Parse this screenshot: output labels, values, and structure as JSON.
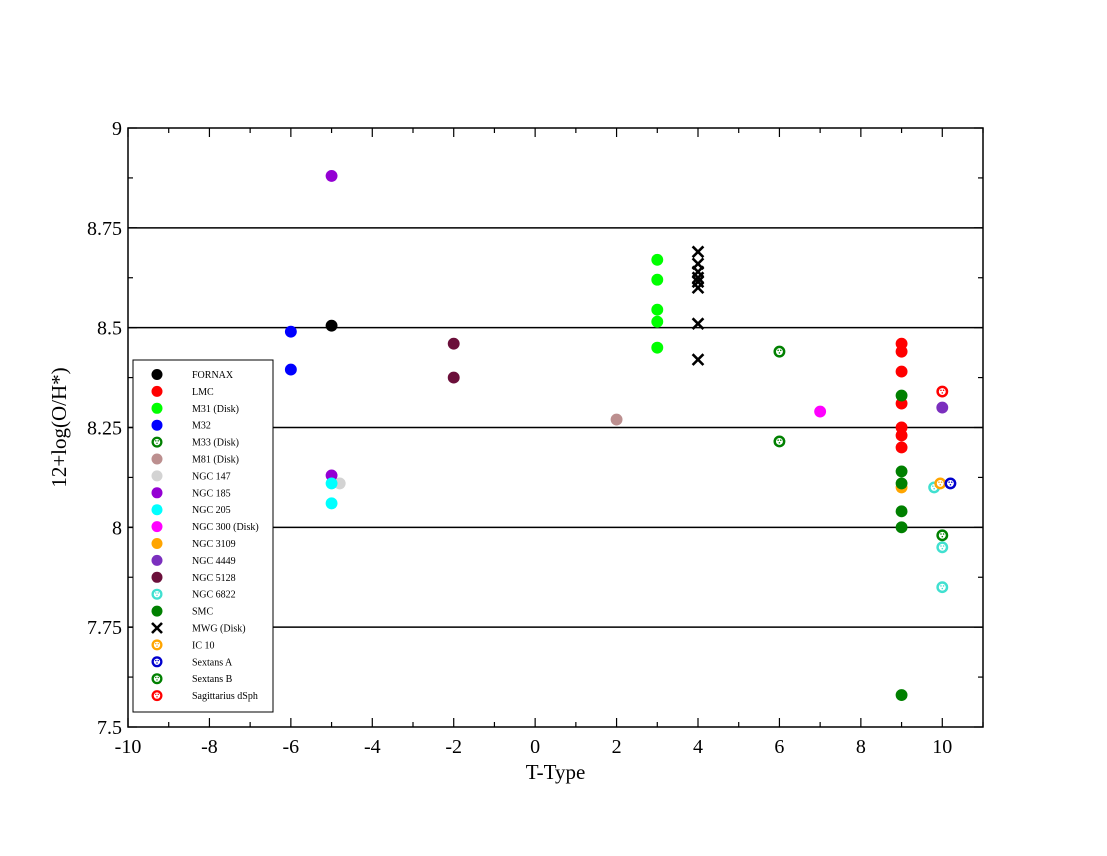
{
  "chart_data": {
    "type": "scatter",
    "title": "",
    "xlabel": "T-Type",
    "ylabel": "12+log(O/H*)",
    "xlim": [
      -10,
      11
    ],
    "ylim": [
      7.5,
      9
    ],
    "xticks": [
      -10,
      -8,
      -6,
      -4,
      -2,
      0,
      2,
      4,
      6,
      8,
      10
    ],
    "xtick_labels": [
      "-10",
      "-8",
      "-6",
      "-4",
      "-2",
      "0",
      "2",
      "4",
      "6",
      "8",
      "10"
    ],
    "yticks": [
      7.5,
      7.75,
      8,
      8.25,
      8.5,
      8.75,
      9
    ],
    "ytick_labels": [
      "7.5",
      "7.75",
      "8",
      "8.25",
      "8.5",
      "8.75",
      "9"
    ],
    "horizontal_gridlines": [
      7.75,
      8,
      8.25,
      8.5,
      8.75
    ],
    "legend_position": "left-middle",
    "series": [
      {
        "name": "FORNAX",
        "color": "#000000",
        "marker": "filled",
        "points": [
          [
            -5,
            8.505
          ]
        ]
      },
      {
        "name": "LMC",
        "color": "#ff0000",
        "marker": "filled",
        "points": [
          [
            9,
            8.46
          ],
          [
            9,
            8.44
          ],
          [
            9,
            8.39
          ],
          [
            9,
            8.31
          ],
          [
            9,
            8.25
          ],
          [
            9,
            8.23
          ],
          [
            9,
            8.2
          ]
        ]
      },
      {
        "name": "M31 (Disk)",
        "color": "#00ff00",
        "marker": "filled",
        "points": [
          [
            3,
            8.67
          ],
          [
            3,
            8.62
          ],
          [
            3,
            8.545
          ],
          [
            3,
            8.515
          ],
          [
            3,
            8.45
          ]
        ]
      },
      {
        "name": "M32",
        "color": "#0000ff",
        "marker": "filled",
        "points": [
          [
            -6,
            8.49
          ],
          [
            -6,
            8.395
          ]
        ]
      },
      {
        "name": "M33 (Disk)",
        "color": "#008000",
        "marker": "hollow",
        "points": [
          [
            6,
            8.44
          ],
          [
            6,
            8.215
          ]
        ]
      },
      {
        "name": "M81 (Disk)",
        "color": "#bc8f8f",
        "marker": "filled",
        "points": [
          [
            2,
            8.27
          ]
        ]
      },
      {
        "name": "NGC 147",
        "color": "#d3d3d3",
        "marker": "filled",
        "points": [
          [
            -4.8,
            8.11
          ]
        ]
      },
      {
        "name": "NGC 185",
        "color": "#9400d3",
        "marker": "filled",
        "points": [
          [
            -5,
            8.88
          ],
          [
            -5,
            8.13
          ]
        ]
      },
      {
        "name": "NGC 205",
        "color": "#00ffff",
        "marker": "filled",
        "points": [
          [
            -5,
            8.11
          ],
          [
            -5,
            8.06
          ]
        ]
      },
      {
        "name": "NGC 300 (Disk)",
        "color": "#ff00ff",
        "marker": "filled",
        "points": [
          [
            7,
            8.29
          ]
        ]
      },
      {
        "name": "NGC 3109",
        "color": "#ffa500",
        "marker": "filled",
        "points": [
          [
            9,
            8.1
          ]
        ]
      },
      {
        "name": "NGC 4449",
        "color": "#7b2fbe",
        "marker": "filled",
        "points": [
          [
            10,
            8.3
          ]
        ]
      },
      {
        "name": "NGC 5128",
        "color": "#6b0f3a",
        "marker": "filled",
        "points": [
          [
            -2,
            8.46
          ],
          [
            -2,
            8.375
          ]
        ]
      },
      {
        "name": "NGC 6822",
        "color": "#40e0d0",
        "marker": "hollow",
        "points": [
          [
            9.8,
            8.1
          ],
          [
            10,
            7.95
          ],
          [
            10,
            7.85
          ]
        ]
      },
      {
        "name": "SMC",
        "color": "#008000",
        "marker": "filled",
        "points": [
          [
            9,
            8.33
          ],
          [
            9,
            8.14
          ],
          [
            9,
            8.11
          ],
          [
            9,
            8.04
          ],
          [
            9,
            8.0
          ],
          [
            9,
            7.58
          ]
        ]
      },
      {
        "name": "MWG  (Disk)",
        "color": "#000000",
        "marker": "x",
        "points": [
          [
            4,
            8.69
          ],
          [
            4,
            8.66
          ],
          [
            4,
            8.64
          ],
          [
            4,
            8.625
          ],
          [
            4,
            8.615
          ],
          [
            4,
            8.6
          ],
          [
            4,
            8.51
          ],
          [
            4,
            8.42
          ]
        ]
      },
      {
        "name": "IC 10",
        "color": "#ffa500",
        "marker": "hollow",
        "points": [
          [
            9.95,
            8.11
          ]
        ]
      },
      {
        "name": "Sextans A",
        "color": "#0000cd",
        "marker": "hollow",
        "points": [
          [
            10.2,
            8.11
          ]
        ]
      },
      {
        "name": "Sextans B",
        "color": "#008000",
        "marker": "hollow",
        "points": [
          [
            10,
            7.98
          ]
        ]
      },
      {
        "name": "Sagittarius dSph",
        "color": "#ff0000",
        "marker": "hollow",
        "points": [
          [
            10,
            8.34
          ]
        ]
      }
    ]
  }
}
